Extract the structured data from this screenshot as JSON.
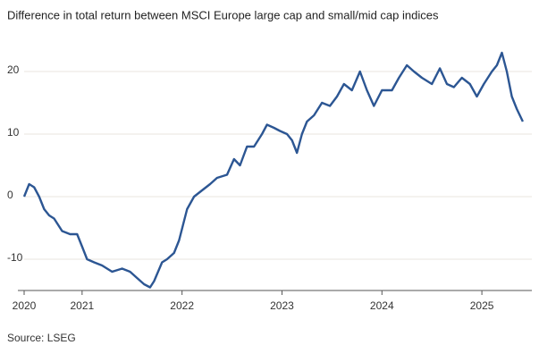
{
  "chart_data": {
    "type": "line",
    "title": "Difference in total return between MSCI Europe large cap and small/mid cap indices",
    "source": "Source: LSEG",
    "x": [
      2020.42,
      2020.47,
      2020.52,
      2020.57,
      2020.62,
      2020.67,
      2020.72,
      2020.8,
      2020.88,
      2020.95,
      2021.0,
      2021.05,
      2021.12,
      2021.2,
      2021.3,
      2021.4,
      2021.48,
      2021.55,
      2021.62,
      2021.68,
      2021.72,
      2021.8,
      2021.85,
      2021.92,
      2021.97,
      2022.05,
      2022.12,
      2022.2,
      2022.28,
      2022.35,
      2022.45,
      2022.52,
      2022.58,
      2022.65,
      2022.72,
      2022.8,
      2022.85,
      2022.92,
      2022.98,
      2023.05,
      2023.1,
      2023.15,
      2023.2,
      2023.25,
      2023.32,
      2023.4,
      2023.48,
      2023.55,
      2023.62,
      2023.7,
      2023.78,
      2023.85,
      2023.92,
      2024.0,
      2024.1,
      2024.17,
      2024.25,
      2024.32,
      2024.4,
      2024.5,
      2024.58,
      2024.65,
      2024.72,
      2024.8,
      2024.88,
      2024.95,
      2025.02,
      2025.1,
      2025.15,
      2025.2,
      2025.25,
      2025.3,
      2025.35,
      2025.41
    ],
    "series": [
      {
        "color": "#2c5693",
        "values": [
          0,
          2,
          1.5,
          0,
          -2,
          -3,
          -3.5,
          -5.5,
          -6,
          -6,
          -8,
          -10,
          -10.5,
          -11,
          -12,
          -11.5,
          -12,
          -13,
          -14,
          -14.5,
          -13.5,
          -10.5,
          -10,
          -9,
          -7,
          -2,
          0,
          1,
          2,
          3,
          3.5,
          6,
          5,
          8,
          8,
          10,
          11.5,
          11,
          10.5,
          10,
          9,
          7,
          10,
          12,
          13,
          15,
          14.5,
          16,
          18,
          17,
          20,
          17,
          14.5,
          17,
          17,
          19,
          21,
          20,
          19,
          18,
          20.5,
          18,
          17.5,
          19,
          18,
          16,
          18,
          20,
          21,
          23,
          20,
          16,
          14,
          12
        ]
      }
    ],
    "xlim": [
      2020.42,
      2025.5
    ],
    "xticks": [
      {
        "value": 2020.42,
        "label": "2020"
      },
      2021,
      2022,
      2023,
      2024,
      2025
    ],
    "ylim": [
      -15,
      25
    ],
    "yticks": [
      -10,
      0,
      10,
      20
    ],
    "grid": true
  }
}
